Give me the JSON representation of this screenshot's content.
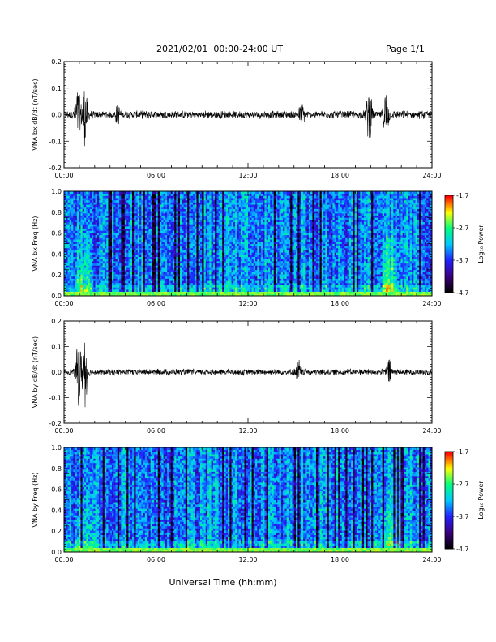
{
  "header": {
    "title": "2021/02/01  00:00-24:00 UT",
    "page": "Page 1/1"
  },
  "colors": {
    "trace": "#000000",
    "colormap": [
      "#000000",
      "#3b0080",
      "#2020ff",
      "#00c8ff",
      "#00ff80",
      "#ffff00",
      "#ff0000"
    ]
  },
  "footer": {
    "xlabel": "Universal Time (hh:mm)"
  },
  "chart_data": [
    {
      "type": "line",
      "name": "bx-derivative",
      "ylabel": "VNA bx dB/dt (nT/sec)",
      "x_ticks": [
        "00:00",
        "06:00",
        "12:00",
        "18:00",
        "24:00"
      ],
      "xlim": [
        0,
        24
      ],
      "ylim": [
        -0.2,
        0.2
      ],
      "y_ticks": [
        "0.2",
        "0.1",
        "0.0",
        "-0.1",
        "-0.2"
      ],
      "bursts": [
        {
          "t": 0.9,
          "amp": 0.09
        },
        {
          "t": 1.35,
          "amp": 0.11
        },
        {
          "t": 3.5,
          "amp": 0.03
        },
        {
          "t": 15.5,
          "amp": 0.035
        },
        {
          "t": 19.9,
          "amp": 0.1
        },
        {
          "t": 21.0,
          "amp": 0.085
        }
      ],
      "baseline_amp": 0.012
    },
    {
      "type": "heatmap",
      "name": "bx-spectrogram",
      "ylabel": "VNA bx Freq (Hz)",
      "x_ticks": [
        "00:00",
        "06:00",
        "12:00",
        "18:00",
        "24:00"
      ],
      "xlim": [
        0,
        24
      ],
      "ylim": [
        0.0,
        1.0
      ],
      "y_ticks": [
        "1.0",
        "0.8",
        "0.6",
        "0.4",
        "0.2",
        "0.0"
      ],
      "colorbar": {
        "label": "Log₁₀ Power",
        "ticks": [
          "-1.7",
          "-2.7",
          "-3.7",
          "-4.7"
        ],
        "range": [
          -4.7,
          -1.7
        ]
      }
    },
    {
      "type": "line",
      "name": "by-derivative",
      "ylabel": "VNA by dB/dt (nT/sec)",
      "x_ticks": [
        "00:00",
        "06:00",
        "12:00",
        "18:00",
        "24:00"
      ],
      "xlim": [
        0,
        24
      ],
      "ylim": [
        -0.2,
        0.2
      ],
      "y_ticks": [
        "0.2",
        "0.1",
        "0.0",
        "-0.1",
        "-0.2"
      ],
      "bursts": [
        {
          "t": 0.95,
          "amp": 0.12
        },
        {
          "t": 1.35,
          "amp": 0.14
        },
        {
          "t": 15.3,
          "amp": 0.04
        },
        {
          "t": 21.2,
          "amp": 0.04
        }
      ],
      "baseline_amp": 0.01
    },
    {
      "type": "heatmap",
      "name": "by-spectrogram",
      "ylabel": "VNA by Freq (Hz)",
      "x_ticks": [
        "00:00",
        "06:00",
        "12:00",
        "18:00",
        "24:00"
      ],
      "xlim": [
        0,
        24
      ],
      "ylim": [
        0.0,
        1.0
      ],
      "y_ticks": [
        "1.0",
        "0.8",
        "0.6",
        "0.4",
        "0.2",
        "0.0"
      ],
      "colorbar": {
        "label": "Log₁₀ Power",
        "ticks": [
          "-1.7",
          "-2.7",
          "-3.7",
          "-4.7"
        ],
        "range": [
          -4.7,
          -1.7
        ]
      }
    }
  ]
}
